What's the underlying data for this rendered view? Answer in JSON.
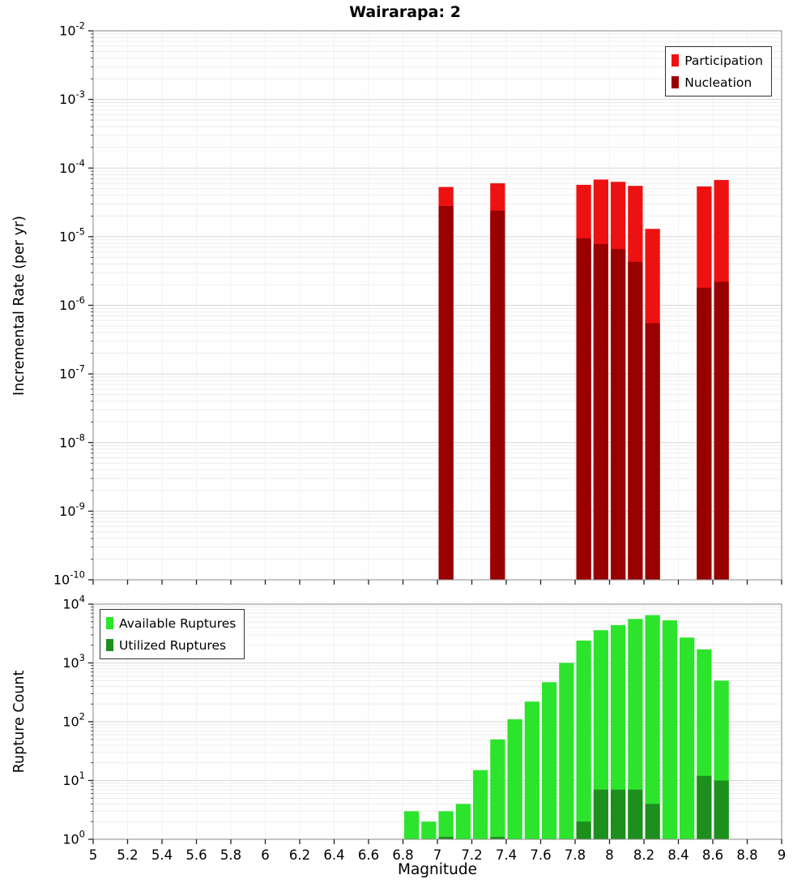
{
  "title": "Wairarapa: 2",
  "chart_data": [
    {
      "type": "bar",
      "title": "Wairarapa: 2",
      "ylabel": "Incremental Rate (per yr)",
      "xlabel": "",
      "y_scale": "log",
      "x_range": [
        5,
        9
      ],
      "y_range_exponents": [
        -10,
        -2
      ],
      "bin_width": 0.1,
      "x_tick_step": 0.2,
      "x_tick_labels_visible": false,
      "grid": true,
      "legend_position": "top-right",
      "categories": [
        7.05,
        7.35,
        7.85,
        7.95,
        8.05,
        8.15,
        8.25,
        8.55,
        8.65
      ],
      "series": [
        {
          "name": "Participation",
          "color": "#ee1111",
          "values": [
            5.3e-05,
            6e-05,
            5.7e-05,
            6.8e-05,
            6.3e-05,
            5.5e-05,
            1.3e-05,
            5.4e-05,
            6.7e-05
          ]
        },
        {
          "name": "Nucleation",
          "color": "#990000",
          "values": [
            2.8e-05,
            2.4e-05,
            9.5e-06,
            7.8e-06,
            6.6e-06,
            4.3e-06,
            5.5e-07,
            1.8e-06,
            2.2e-06
          ]
        }
      ]
    },
    {
      "type": "bar",
      "title": "",
      "ylabel": "Rupture Count",
      "xlabel": "Magnitude",
      "y_scale": "log",
      "x_range": [
        5,
        9
      ],
      "y_range_exponents": [
        0,
        4
      ],
      "bin_width": 0.1,
      "x_tick_step": 0.2,
      "x_tick_labels_visible": true,
      "x_tick_labels": [
        "5",
        "5.2",
        "5.4",
        "5.6",
        "5.8",
        "6",
        "6.2",
        "6.4",
        "6.6",
        "6.8",
        "7",
        "7.2",
        "7.4",
        "7.6",
        "7.8",
        "8",
        "8.2",
        "8.4",
        "8.6",
        "8.8",
        "9"
      ],
      "grid": true,
      "legend_position": "top-left",
      "categories": [
        6.85,
        6.95,
        7.05,
        7.15,
        7.25,
        7.35,
        7.45,
        7.55,
        7.65,
        7.75,
        7.85,
        7.95,
        8.05,
        8.15,
        8.25,
        8.35,
        8.45,
        8.55,
        8.65
      ],
      "series": [
        {
          "name": "Available Ruptures",
          "color": "#2ce42c",
          "values": [
            3,
            2,
            3,
            4,
            15,
            50,
            110,
            220,
            470,
            1000,
            2400,
            3600,
            4400,
            5600,
            6500,
            5300,
            2700,
            1700,
            500
          ]
        },
        {
          "name": "Utilized Ruptures",
          "color": "#1d8f1d",
          "values": [
            0,
            0,
            1,
            0,
            0,
            1,
            0,
            0,
            0,
            0,
            2,
            7,
            7,
            7,
            4,
            0,
            0,
            12,
            10
          ]
        }
      ]
    }
  ]
}
